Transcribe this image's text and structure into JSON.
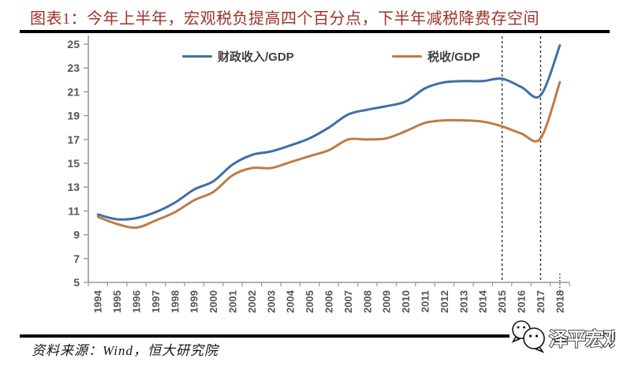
{
  "title": "图表1：今年上半年，宏观税负提高四个百分点，下半年减税降费存空间",
  "source_note": "资料来源：Wind，恒大研究院",
  "logo": {
    "name": "泽平宏观",
    "icon": "wechat-icon"
  },
  "colors": {
    "title": "#9e3229",
    "axis": "#999999",
    "tick_label": "#555555",
    "legend_text": "#404040",
    "series_blue": "#3e6fa7",
    "series_orange": "#bf7b44",
    "dashed_line": "#333333",
    "divider": "#000000"
  },
  "chart_data": {
    "type": "line",
    "x": [
      1994,
      1995,
      1996,
      1997,
      1998,
      1999,
      2000,
      2001,
      2002,
      2003,
      2004,
      2005,
      2006,
      2007,
      2008,
      2009,
      2010,
      2011,
      2012,
      2013,
      2014,
      2015,
      2016,
      2017,
      2018
    ],
    "series": [
      {
        "name": "财政收入/GDP",
        "color": "#3e6fa7",
        "values": [
          10.7,
          10.3,
          10.4,
          10.9,
          11.7,
          12.8,
          13.5,
          14.9,
          15.7,
          16.0,
          16.5,
          17.1,
          18.0,
          19.1,
          19.5,
          19.8,
          20.2,
          21.3,
          21.8,
          21.9,
          21.9,
          22.1,
          21.4,
          20.7,
          24.9
        ]
      },
      {
        "name": "税收/GDP",
        "color": "#bf7b44",
        "values": [
          10.5,
          9.9,
          9.6,
          10.2,
          10.9,
          11.9,
          12.6,
          14.0,
          14.6,
          14.6,
          15.1,
          15.6,
          16.1,
          17.0,
          17.0,
          17.1,
          17.7,
          18.4,
          18.6,
          18.6,
          18.5,
          18.1,
          17.5,
          17.1,
          21.8
        ]
      }
    ],
    "ylim": [
      5,
      25
    ],
    "ytick_step": 2,
    "grid": false,
    "legend_position": "top-inside",
    "annotations": {
      "dashed_vlines_years": [
        2015,
        2017
      ],
      "dotted_tick_year": 2018
    }
  }
}
